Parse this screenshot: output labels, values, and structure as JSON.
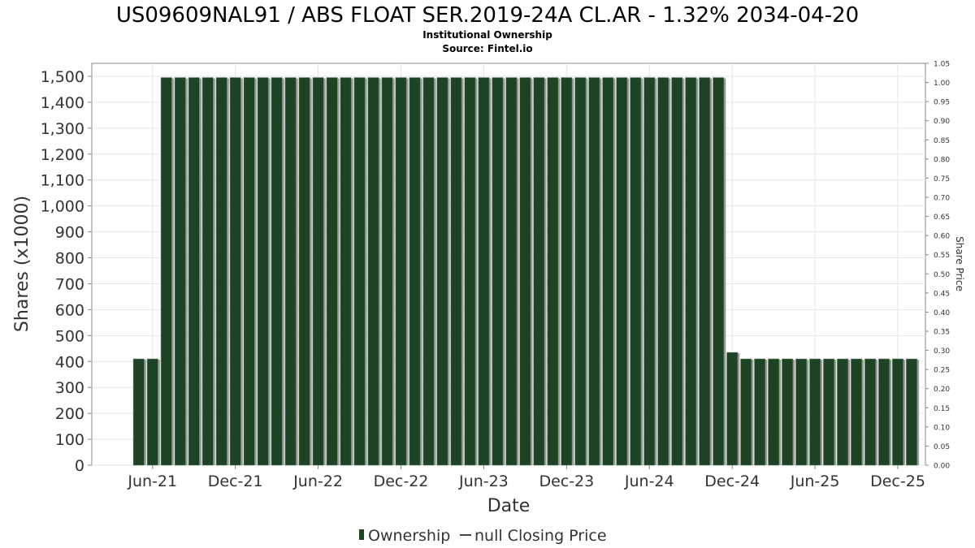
{
  "chart_data": {
    "type": "bar",
    "title": "US09609NAL91 / ABS FLOAT SER.2019-24A CL.AR - 1.32% 2034-04-20",
    "subtitle_line1": "Institutional Ownership",
    "subtitle_line2": "Source: Fintel.io",
    "xlabel": "Date",
    "ylabel": "Shares (x1000)",
    "y2label": "Share Price",
    "ylim": [
      0,
      1550
    ],
    "y2lim": [
      0,
      1.05
    ],
    "yticks": [
      0,
      100,
      200,
      300,
      400,
      500,
      600,
      700,
      800,
      900,
      1000,
      1100,
      1200,
      1300,
      1400,
      1500
    ],
    "ytick_labels": [
      "0",
      "100",
      "200",
      "300",
      "400",
      "500",
      "600",
      "700",
      "800",
      "900",
      "1,000",
      "1,100",
      "1,200",
      "1,300",
      "1,400",
      "1,500"
    ],
    "y2ticks": [
      0,
      0.05,
      0.1,
      0.15,
      0.2,
      0.25,
      0.3,
      0.35,
      0.4,
      0.45,
      0.5,
      0.55,
      0.6,
      0.65,
      0.7,
      0.75,
      0.8,
      0.85,
      0.9,
      0.95,
      1.0,
      1.05
    ],
    "y2tick_labels": [
      "0.00",
      "0.05",
      "0.10",
      "0.15",
      "0.20",
      "0.25",
      "0.30",
      "0.35",
      "0.40",
      "0.45",
      "0.50",
      "0.55",
      "0.60",
      "0.65",
      "0.70",
      "0.75",
      "0.80",
      "0.85",
      "0.90",
      "0.95",
      "1.00",
      "1.05"
    ],
    "xlim_months": [
      -4.4,
      56.0
    ],
    "xticks_months": [
      0,
      6,
      12,
      18,
      24,
      30,
      36,
      42,
      48,
      54
    ],
    "xtick_labels": [
      "Jun-21",
      "Dec-21",
      "Jun-22",
      "Dec-22",
      "Jun-23",
      "Dec-23",
      "Jun-24",
      "Dec-24",
      "Jun-25",
      "Dec-25"
    ],
    "x_reference": "month 0 = Jun-21",
    "x_months": [
      -1,
      0,
      1,
      2,
      3,
      4,
      5,
      6,
      7,
      8,
      9,
      10,
      11,
      12,
      13,
      14,
      15,
      16,
      17,
      18,
      19,
      20,
      21,
      22,
      23,
      24,
      25,
      26,
      27,
      28,
      29,
      30,
      31,
      32,
      33,
      34,
      35,
      36,
      37,
      38,
      39,
      40,
      41,
      42,
      43,
      44,
      45,
      46,
      47,
      48,
      49,
      50,
      51,
      52,
      53,
      54,
      55
    ],
    "series": [
      {
        "name": "Ownership",
        "color": "#1e4224",
        "values": [
          410,
          410,
          1495,
          1495,
          1495,
          1495,
          1495,
          1495,
          1495,
          1495,
          1495,
          1495,
          1495,
          1495,
          1495,
          1495,
          1495,
          1495,
          1495,
          1495,
          1495,
          1495,
          1495,
          1495,
          1495,
          1495,
          1495,
          1495,
          1495,
          1495,
          1495,
          1495,
          1495,
          1495,
          1495,
          1495,
          1495,
          1495,
          1495,
          1495,
          1495,
          1495,
          1495,
          435.0,
          410,
          410,
          410,
          410,
          410,
          410,
          410,
          410,
          410,
          410,
          410,
          410,
          410
        ]
      }
    ],
    "legend": {
      "position": "bottom-center",
      "items": [
        {
          "label": "Ownership",
          "color": "#1e4224",
          "marker": "bar"
        },
        {
          "label": "null Closing Price",
          "color": "#444444",
          "marker": "line"
        }
      ]
    },
    "grid": true
  }
}
